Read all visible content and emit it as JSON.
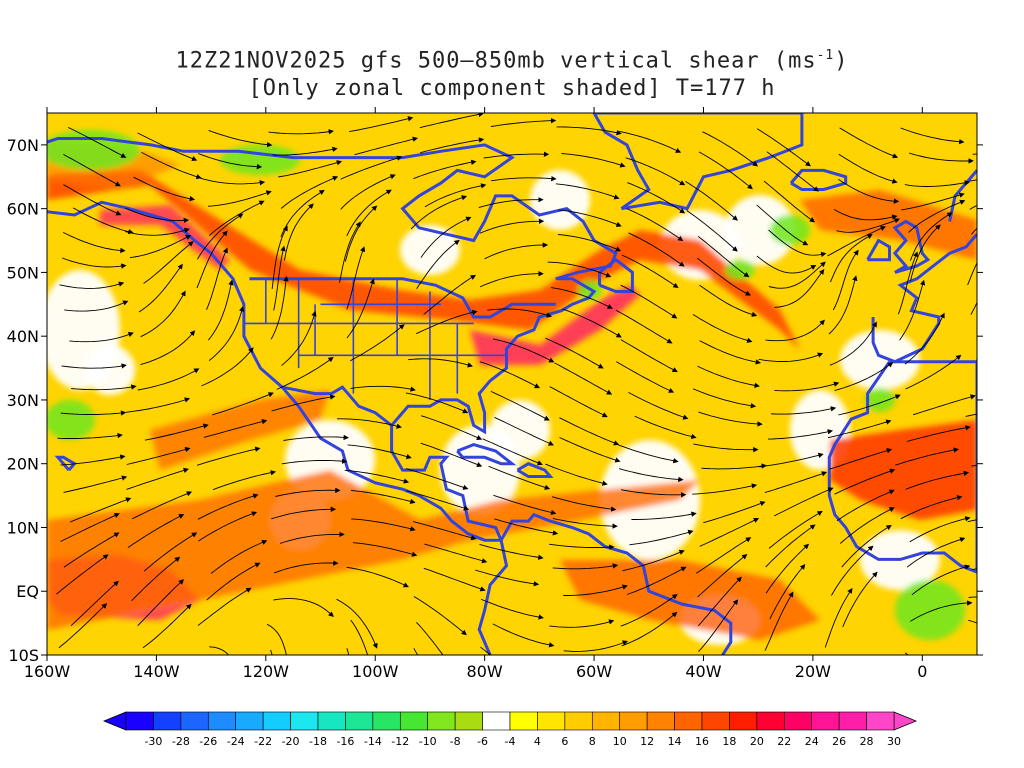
{
  "title_line1": "12Z21NOV2025 gfs 500–850mb vertical shear (ms",
  "title_line1_exp": "-1",
  "title_line1_end": ")",
  "title_line2": "[Only zonal component shaded] T=177 h",
  "map": {
    "lat_labels": [
      "70N",
      "60N",
      "50N",
      "40N",
      "30N",
      "20N",
      "10N",
      "EQ",
      "10S"
    ],
    "lat_values": [
      70,
      60,
      50,
      40,
      30,
      20,
      10,
      0,
      -10
    ],
    "lon_labels": [
      "160W",
      "140W",
      "120W",
      "100W",
      "80W",
      "60W",
      "40W",
      "20W",
      "0"
    ],
    "lon_values": [
      -160,
      -140,
      -120,
      -100,
      -80,
      -60,
      -40,
      -20,
      0
    ],
    "lon_range": [
      -160,
      10
    ],
    "lat_range": [
      -10,
      75
    ],
    "coastline_color": "#3344dd"
  },
  "colorbar": {
    "labels": [
      "-30",
      "-28",
      "-26",
      "-24",
      "-22",
      "-20",
      "-18",
      "-16",
      "-14",
      "-12",
      "-10",
      "-8",
      "-6",
      "-4",
      "4",
      "6",
      "8",
      "10",
      "12",
      "14",
      "16",
      "18",
      "20",
      "22",
      "24",
      "26",
      "28",
      "30"
    ],
    "colors": [
      "#1a00ff",
      "#1440ff",
      "#1a66ff",
      "#1e8cff",
      "#17aaff",
      "#14ccff",
      "#1ee6f0",
      "#18e6c0",
      "#1ee696",
      "#28e664",
      "#46e632",
      "#82e61e",
      "#aadc14",
      "#ffffff",
      "#ffff00",
      "#ffe600",
      "#ffcc00",
      "#ffb400",
      "#ff9c00",
      "#ff8200",
      "#ff6400",
      "#ff4600",
      "#ff1e00",
      "#ff0032",
      "#ff0064",
      "#ff1493",
      "#ff1eaa",
      "#ff46c8"
    ]
  }
}
